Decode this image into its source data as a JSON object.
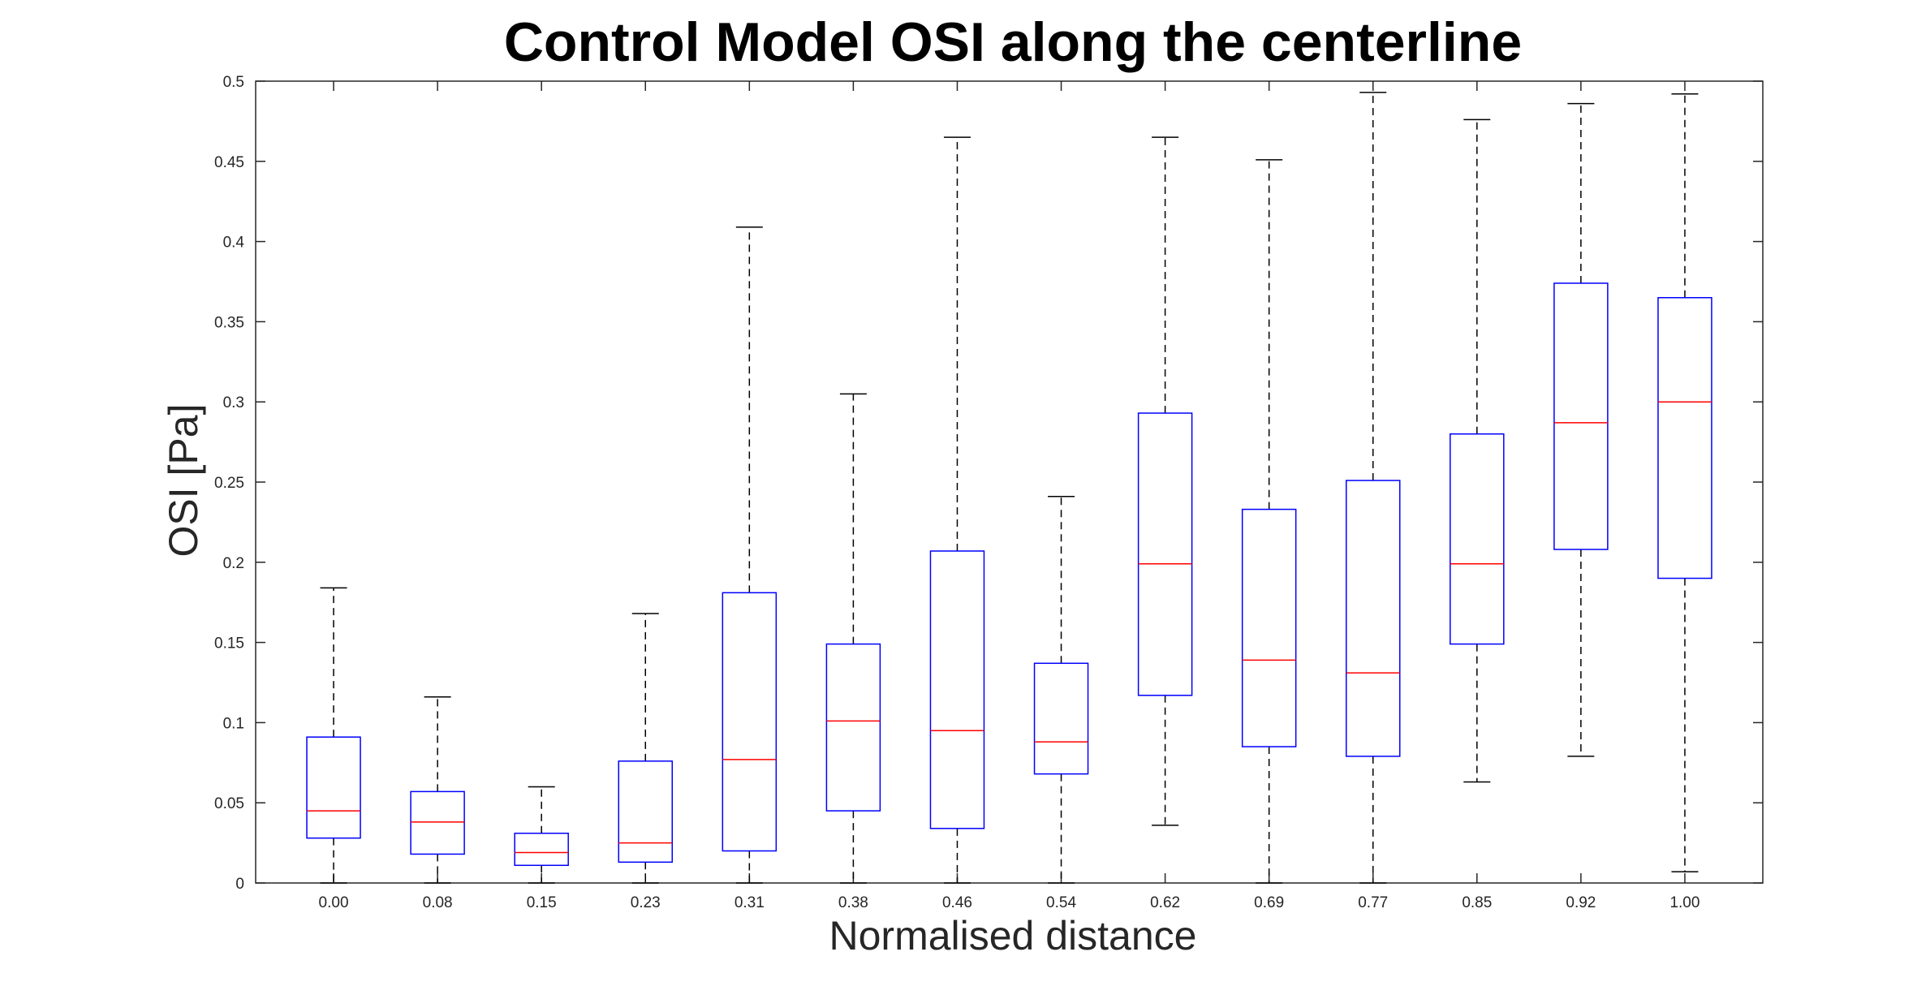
{
  "chart_data": {
    "type": "box",
    "title": "Control Model OSI along the centerline",
    "xlabel": "Normalised distance",
    "ylabel": "OSI [Pa]",
    "ylim": [
      0,
      0.5
    ],
    "yticks": [
      "0",
      "0.05",
      "0.1",
      "0.15",
      "0.2",
      "0.25",
      "0.3",
      "0.35",
      "0.4",
      "0.45",
      "0.5"
    ],
    "categories": [
      "0.00",
      "0.08",
      "0.15",
      "0.23",
      "0.31",
      "0.38",
      "0.46",
      "0.54",
      "0.62",
      "0.69",
      "0.77",
      "0.85",
      "0.92",
      "1.00"
    ],
    "boxes": [
      {
        "whisker_low": 0.0,
        "q1": 0.028,
        "median": 0.045,
        "q3": 0.091,
        "whisker_high": 0.184
      },
      {
        "whisker_low": 0.0,
        "q1": 0.018,
        "median": 0.038,
        "q3": 0.057,
        "whisker_high": 0.116
      },
      {
        "whisker_low": 0.0,
        "q1": 0.011,
        "median": 0.019,
        "q3": 0.031,
        "whisker_high": 0.06
      },
      {
        "whisker_low": 0.0,
        "q1": 0.013,
        "median": 0.025,
        "q3": 0.076,
        "whisker_high": 0.168
      },
      {
        "whisker_low": 0.0,
        "q1": 0.02,
        "median": 0.077,
        "q3": 0.181,
        "whisker_high": 0.409
      },
      {
        "whisker_low": 0.0,
        "q1": 0.045,
        "median": 0.101,
        "q3": 0.149,
        "whisker_high": 0.305
      },
      {
        "whisker_low": 0.0,
        "q1": 0.034,
        "median": 0.095,
        "q3": 0.207,
        "whisker_high": 0.465
      },
      {
        "whisker_low": 0.0,
        "q1": 0.068,
        "median": 0.088,
        "q3": 0.137,
        "whisker_high": 0.241
      },
      {
        "whisker_low": 0.036,
        "q1": 0.117,
        "median": 0.199,
        "q3": 0.293,
        "whisker_high": 0.465
      },
      {
        "whisker_low": 0.0,
        "q1": 0.085,
        "median": 0.139,
        "q3": 0.233,
        "whisker_high": 0.451
      },
      {
        "whisker_low": 0.0,
        "q1": 0.079,
        "median": 0.131,
        "q3": 0.251,
        "whisker_high": 0.493
      },
      {
        "whisker_low": 0.063,
        "q1": 0.149,
        "median": 0.199,
        "q3": 0.28,
        "whisker_high": 0.476
      },
      {
        "whisker_low": 0.079,
        "q1": 0.208,
        "median": 0.287,
        "q3": 0.374,
        "whisker_high": 0.486
      },
      {
        "whisker_low": 0.007,
        "q1": 0.19,
        "median": 0.3,
        "q3": 0.365,
        "whisker_high": 0.492
      }
    ],
    "colors": {
      "box": "#0000ff",
      "median": "#ff0000",
      "whisker": "#000000",
      "axis": "#262626"
    },
    "grid": false
  }
}
